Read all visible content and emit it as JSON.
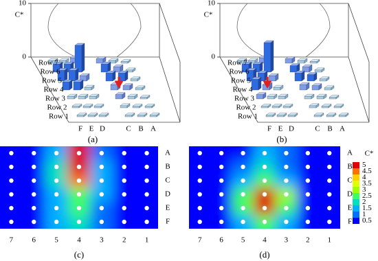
{
  "chart_data": [
    {
      "type": "bar3d",
      "label": "(a)",
      "zlabel": "C*",
      "zlim": [
        0,
        10
      ],
      "zticks": [
        0,
        10
      ],
      "rows": [
        "Row 1",
        "Row 2",
        "Row 3",
        "Row 4",
        "Row 5",
        "Row 6",
        "Row 7"
      ],
      "columns": [
        "F",
        "E",
        "D",
        "C",
        "B",
        "A"
      ],
      "values": [
        [
          0.3,
          0.3,
          0.3,
          0.3,
          0.3,
          0.3
        ],
        [
          0.3,
          0.3,
          0.3,
          0.4,
          0.3,
          0.3
        ],
        [
          0.5,
          0.5,
          0.5,
          0.8,
          0.5,
          0.3
        ],
        [
          1.5,
          1.5,
          0.5,
          1,
          0.8,
          0.4
        ],
        [
          2,
          2,
          1,
          1.5,
          1.5,
          0.4
        ],
        [
          1.5,
          1.5,
          5,
          1.5,
          1,
          0.4
        ],
        [
          0.5,
          0.5,
          1,
          0.8,
          0.5,
          0.3
        ]
      ]
    },
    {
      "type": "bar3d",
      "label": "(b)",
      "zlabel": "C*",
      "zlim": [
        0,
        10
      ],
      "zticks": [
        0,
        10
      ],
      "rows": [
        "Row 1",
        "Row 2",
        "Row 3",
        "Row 4",
        "Row 5",
        "Row 6",
        "Row 7"
      ],
      "columns": [
        "F",
        "E",
        "D",
        "C",
        "B",
        "A"
      ],
      "values": [
        [
          0.3,
          0.3,
          0.3,
          0.3,
          0.3,
          0.3
        ],
        [
          0.3,
          0.3,
          0.3,
          0.4,
          0.3,
          0.3
        ],
        [
          0.8,
          0.5,
          0.5,
          0.5,
          0.5,
          0.3
        ],
        [
          2,
          1,
          0.5,
          1,
          0.8,
          0.4
        ],
        [
          2,
          1.5,
          1,
          1.5,
          1.2,
          0.4
        ],
        [
          1.5,
          1.5,
          5.5,
          1.2,
          1,
          0.4
        ],
        [
          0.5,
          0.5,
          1,
          0.8,
          0.5,
          0.3
        ]
      ]
    },
    {
      "type": "contour",
      "label": "(c)",
      "columns": [
        "7",
        "6",
        "5",
        "4",
        "3",
        "2",
        "1"
      ],
      "rows": [
        "A",
        "B",
        "C",
        "D",
        "E",
        "F"
      ],
      "values": [
        [
          0.4,
          0.6,
          1.5,
          5,
          1.2,
          0.4,
          0.4
        ],
        [
          0.4,
          0.8,
          2,
          5.2,
          1.5,
          0.4,
          0.4
        ],
        [
          0.4,
          0.8,
          2,
          4.5,
          1.5,
          0.5,
          0.4
        ],
        [
          0.4,
          0.7,
          1.8,
          2.5,
          1.5,
          0.5,
          0.4
        ],
        [
          0.4,
          0.7,
          1.8,
          2.5,
          1.2,
          0.5,
          0.4
        ],
        [
          0.4,
          0.6,
          1.5,
          2,
          1,
          0.5,
          0.4
        ]
      ]
    },
    {
      "type": "contour",
      "label": "(d)",
      "columns": [
        "7",
        "6",
        "5",
        "4",
        "3",
        "2",
        "1"
      ],
      "rows": [
        "A",
        "B",
        "C",
        "D",
        "E",
        "F"
      ],
      "values": [
        [
          0.4,
          0.4,
          0.8,
          1.5,
          1,
          0.4,
          0.4
        ],
        [
          0.4,
          0.4,
          1,
          2,
          1.2,
          0.4,
          0.4
        ],
        [
          0.4,
          0.5,
          1.5,
          2.5,
          1.5,
          0.5,
          0.4
        ],
        [
          0.4,
          0.6,
          2.5,
          5,
          3,
          0.8,
          0.4
        ],
        [
          0.4,
          0.6,
          2.5,
          5.2,
          2.5,
          0.8,
          0.4
        ],
        [
          0.4,
          0.5,
          1.8,
          2.5,
          1.5,
          0.6,
          0.4
        ]
      ],
      "colorbar": {
        "label": "C*",
        "ticks": [
          5,
          4.5,
          4,
          3.5,
          3,
          2.5,
          2,
          1.5,
          1,
          0.5
        ],
        "colors": [
          "#e00000",
          "#ff7000",
          "#ffd000",
          "#e0ff00",
          "#a0ff00",
          "#40ff60",
          "#00e0c0",
          "#00b0ff",
          "#0070ff",
          "#0000ff"
        ]
      }
    }
  ]
}
